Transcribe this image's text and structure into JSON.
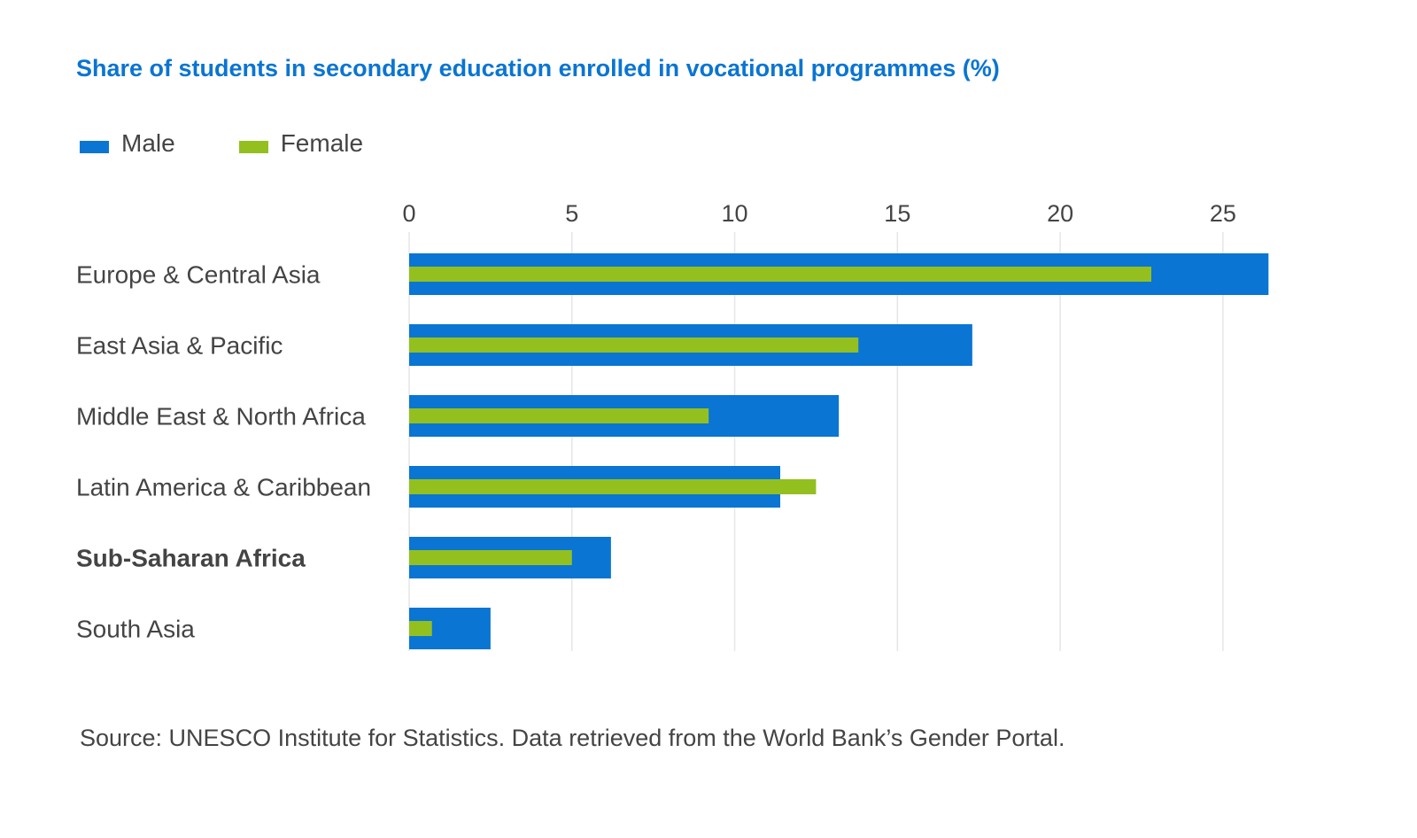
{
  "title": "Share of students in secondary education enrolled in vocational programmes (%)",
  "source": "Source: UNESCO Institute for Statistics. Data retrieved from the World Bank’s Gender Portal.",
  "colors": {
    "male": "#0a75d2",
    "female": "#93c01f",
    "grid": "#e6e6e6",
    "label": "#444444"
  },
  "chart_data": {
    "type": "bar",
    "orientation": "horizontal",
    "title": "Share of students in secondary education enrolled in vocational programmes (%)",
    "categories": [
      "Europe & Central Asia",
      "East Asia & Pacific",
      "Middle East & North Africa",
      "Latin America & Caribbean",
      "Sub-Saharan Africa",
      "South Asia"
    ],
    "highlighted_category": "Sub-Saharan Africa",
    "series": [
      {
        "name": "Male",
        "values": [
          26.4,
          17.3,
          13.2,
          11.4,
          6.2,
          2.5
        ]
      },
      {
        "name": "Female",
        "values": [
          22.8,
          13.8,
          9.2,
          12.5,
          5.0,
          0.7
        ]
      }
    ],
    "xlim": [
      0,
      26.5
    ],
    "xticks": [
      0,
      5,
      10,
      15,
      20,
      25
    ],
    "xlabel": "",
    "ylabel": "",
    "grid": true,
    "legend": "top-left",
    "axis_position": "top"
  }
}
